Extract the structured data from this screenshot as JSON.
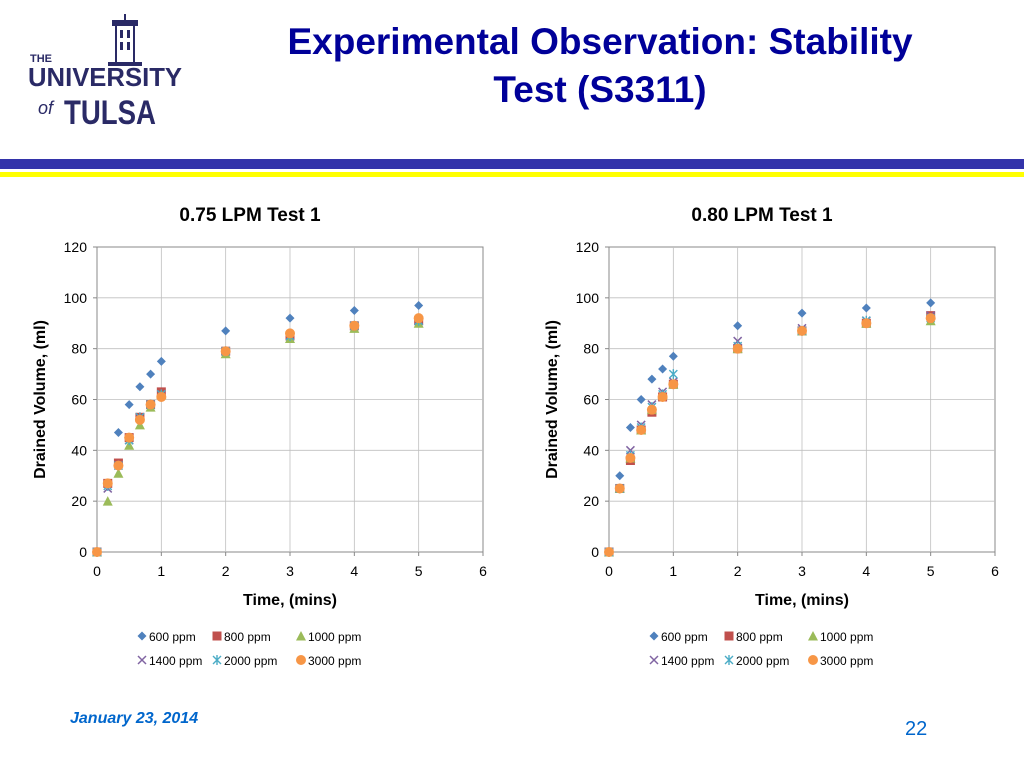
{
  "slide": {
    "title_line1": "Experimental Observation: Stability",
    "title_line2": "Test (S3311)",
    "date": "January 23, 2014",
    "page_number": "22",
    "logo": {
      "line1": "THE",
      "line2": "UNIVERSITY",
      "line3": "of",
      "line4": "TULSA"
    }
  },
  "colors": {
    "title": "#000099",
    "rule_blue": "#3333aa",
    "rule_yellow": "#ffff00",
    "footer": "#0066cc"
  },
  "chart_data": [
    {
      "type": "scatter",
      "title": "0.75 LPM Test 1",
      "xlabel": "Time, (mins)",
      "ylabel": "Drained Volume, (ml)",
      "xlim": [
        0,
        6
      ],
      "ylim": [
        0,
        120
      ],
      "xticks": [
        0,
        1,
        2,
        3,
        4,
        5,
        6
      ],
      "yticks": [
        0,
        20,
        40,
        60,
        80,
        100,
        120
      ],
      "grid": true,
      "legend_position": "bottom",
      "series": [
        {
          "name": "600 ppm",
          "marker": "diamond",
          "color": "#4f81bd",
          "x": [
            0,
            0.167,
            0.333,
            0.5,
            0.667,
            0.833,
            1,
            2,
            3,
            4,
            5
          ],
          "y": [
            0,
            27,
            47,
            58,
            65,
            70,
            75,
            87,
            92,
            95,
            97
          ]
        },
        {
          "name": "800 ppm",
          "marker": "square",
          "color": "#c0504d",
          "x": [
            0,
            0.167,
            0.333,
            0.5,
            0.667,
            0.833,
            1,
            2,
            3,
            4,
            5
          ],
          "y": [
            0,
            27,
            35,
            45,
            53,
            58,
            63,
            79,
            85,
            89,
            91
          ]
        },
        {
          "name": "1000 ppm",
          "marker": "triangle",
          "color": "#9bbb59",
          "x": [
            0,
            0.167,
            0.333,
            0.5,
            0.667,
            0.833,
            1,
            2,
            3,
            4,
            5
          ],
          "y": [
            0,
            20,
            31,
            42,
            50,
            57,
            62,
            78,
            84,
            88,
            90
          ]
        },
        {
          "name": "1400 ppm",
          "marker": "x",
          "color": "#8064a2",
          "x": [
            0,
            0.167,
            0.333,
            0.5,
            0.667,
            0.833,
            1,
            2,
            3,
            4,
            5
          ],
          "y": [
            0,
            25,
            34,
            44,
            53,
            58,
            62,
            79,
            85,
            89,
            91
          ]
        },
        {
          "name": "2000 ppm",
          "marker": "asterisk",
          "color": "#4bacc6",
          "x": [
            0,
            0.167,
            0.333,
            0.5,
            0.667,
            0.833,
            1,
            2,
            3,
            4,
            5
          ],
          "y": [
            0,
            26,
            34,
            44,
            53,
            58,
            62,
            79,
            85,
            89,
            91
          ]
        },
        {
          "name": "3000 ppm",
          "marker": "circle",
          "color": "#f79646",
          "x": [
            0,
            0.167,
            0.333,
            0.5,
            0.667,
            0.833,
            1,
            2,
            3,
            4,
            5
          ],
          "y": [
            0,
            27,
            34,
            45,
            52,
            58,
            61,
            79,
            86,
            89,
            92
          ]
        }
      ]
    },
    {
      "type": "scatter",
      "title": "0.80 LPM Test 1",
      "xlabel": "Time, (mins)",
      "ylabel": "Drained Volume, (ml)",
      "xlim": [
        0,
        6
      ],
      "ylim": [
        0,
        120
      ],
      "xticks": [
        0,
        1,
        2,
        3,
        4,
        5,
        6
      ],
      "yticks": [
        0,
        20,
        40,
        60,
        80,
        100,
        120
      ],
      "grid": true,
      "legend_position": "bottom",
      "series": [
        {
          "name": "600 ppm",
          "marker": "diamond",
          "color": "#4f81bd",
          "x": [
            0,
            0.167,
            0.333,
            0.5,
            0.667,
            0.833,
            1,
            2,
            3,
            4,
            5
          ],
          "y": [
            0,
            30,
            49,
            60,
            68,
            72,
            77,
            89,
            94,
            96,
            98
          ]
        },
        {
          "name": "800 ppm",
          "marker": "square",
          "color": "#c0504d",
          "x": [
            0,
            0.167,
            0.333,
            0.5,
            0.667,
            0.833,
            1,
            2,
            3,
            4,
            5
          ],
          "y": [
            0,
            25,
            36,
            48,
            55,
            61,
            66,
            80,
            87,
            90,
            93
          ]
        },
        {
          "name": "1000 ppm",
          "marker": "triangle",
          "color": "#9bbb59",
          "x": [
            0,
            0.167,
            0.333,
            0.5,
            0.667,
            0.833,
            1,
            2,
            3,
            4,
            5
          ],
          "y": [
            0,
            25,
            37,
            48,
            56,
            62,
            66,
            80,
            87,
            90,
            91
          ]
        },
        {
          "name": "1400 ppm",
          "marker": "x",
          "color": "#8064a2",
          "x": [
            0,
            0.167,
            0.333,
            0.5,
            0.667,
            0.833,
            1,
            2,
            3,
            4,
            5
          ],
          "y": [
            0,
            25,
            40,
            50,
            58,
            63,
            67,
            83,
            88,
            91,
            93
          ]
        },
        {
          "name": "2000 ppm",
          "marker": "asterisk",
          "color": "#4bacc6",
          "x": [
            0,
            0.167,
            0.333,
            0.5,
            0.667,
            0.833,
            1,
            2,
            3,
            4,
            5
          ],
          "y": [
            0,
            25,
            38,
            49,
            57,
            62,
            70,
            81,
            87,
            91,
            92
          ]
        },
        {
          "name": "3000 ppm",
          "marker": "circle",
          "color": "#f79646",
          "x": [
            0,
            0.167,
            0.333,
            0.5,
            0.667,
            0.833,
            1,
            2,
            3,
            4,
            5
          ],
          "y": [
            0,
            25,
            37,
            48,
            56,
            61,
            66,
            80,
            87,
            90,
            92
          ]
        }
      ]
    }
  ]
}
